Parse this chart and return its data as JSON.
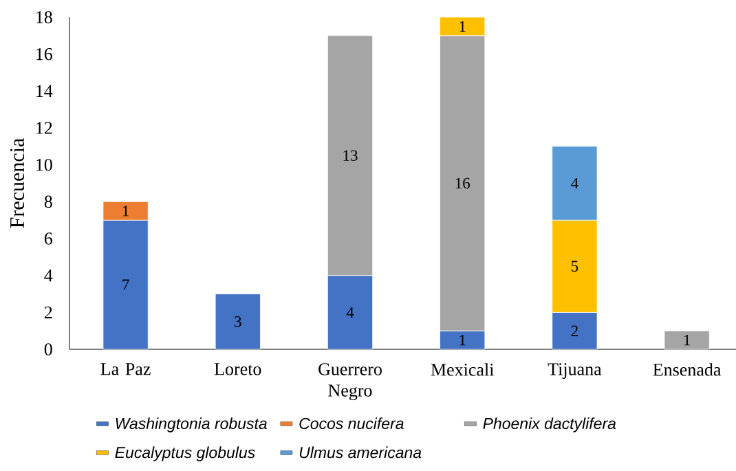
{
  "chart_data": {
    "type": "bar",
    "stacked": true,
    "ylabel": "Frecuencia",
    "categories": [
      "La Paz",
      "Loreto",
      "Guerrero Negro",
      "Mexicali",
      "Tijuana",
      "Ensenada"
    ],
    "series": [
      {
        "name": "Washingtonia robusta",
        "color": "#4472c4",
        "values": [
          7,
          3,
          4,
          1,
          2,
          null
        ]
      },
      {
        "name": "Cocos nucifera",
        "color": "#ed7d31",
        "values": [
          1,
          null,
          null,
          null,
          null,
          null
        ]
      },
      {
        "name": "Phoenix dactylifera",
        "color": "#a5a5a5",
        "values": [
          null,
          null,
          13,
          16,
          null,
          1
        ]
      },
      {
        "name": "Eucalyptus globulus",
        "color": "#ffc000",
        "values": [
          null,
          null,
          null,
          1,
          5,
          null
        ]
      },
      {
        "name": "Ulmus americana",
        "color": "#5b9bd5",
        "values": [
          null,
          null,
          null,
          null,
          4,
          null
        ]
      }
    ],
    "ylim": [
      0,
      18
    ],
    "yticks": [
      0,
      2,
      4,
      6,
      8,
      10,
      12,
      14,
      16,
      18
    ],
    "data_labels": true,
    "legend": "bottom"
  }
}
